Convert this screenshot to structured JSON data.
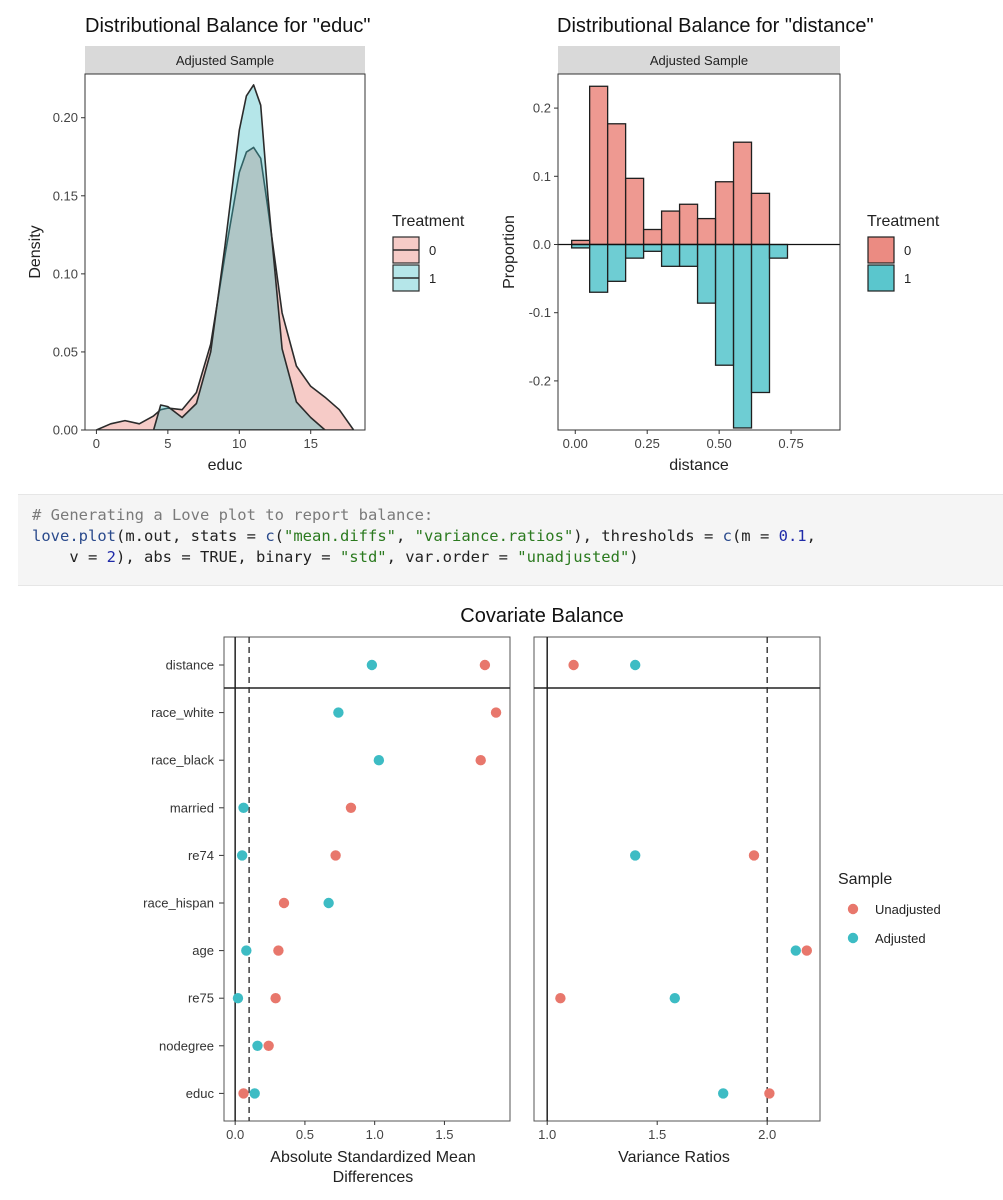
{
  "colors": {
    "control": "#E8776C",
    "treated": "#3DBCC4",
    "strip_bg": "#D9D9D9"
  },
  "chart_data": [
    {
      "type": "area",
      "title": "Distributional Balance for \"educ\"",
      "strip": "Adjusted Sample",
      "xlabel": "educ",
      "ylabel": "Density",
      "xlim": [
        -0.8,
        18.8
      ],
      "ylim": [
        0,
        0.228
      ],
      "xticks": [
        "0",
        "5",
        "10",
        "15"
      ],
      "xtick_values": [
        0,
        5,
        10,
        15
      ],
      "yticks": [
        "0.00",
        "0.05",
        "0.10",
        "0.15",
        "0.20"
      ],
      "ytick_values": [
        0,
        0.05,
        0.1,
        0.15,
        0.2
      ],
      "legend": {
        "title": "Treatment",
        "position": "right",
        "entries": [
          "0",
          "1"
        ]
      },
      "series": [
        {
          "name": "0",
          "x": [
            0,
            1,
            2,
            3,
            4,
            4.5,
            5,
            6,
            7,
            8,
            9,
            10,
            10.5,
            11,
            11.5,
            12,
            13,
            14,
            15,
            16,
            17,
            18
          ],
          "y": [
            0,
            0.004,
            0.006,
            0.004,
            0.009,
            0.013,
            0.014,
            0.013,
            0.024,
            0.055,
            0.112,
            0.165,
            0.178,
            0.181,
            0.174,
            0.142,
            0.075,
            0.041,
            0.028,
            0.021,
            0.013,
            0
          ]
        },
        {
          "name": "1",
          "x": [
            4,
            4.5,
            5,
            6,
            7,
            8,
            9,
            10,
            10.5,
            11,
            11.5,
            12,
            13,
            14,
            15,
            16
          ],
          "y": [
            0,
            0.016,
            0.015,
            0.008,
            0.017,
            0.05,
            0.118,
            0.192,
            0.214,
            0.221,
            0.208,
            0.15,
            0.052,
            0.018,
            0.008,
            0
          ]
        }
      ]
    },
    {
      "type": "bar",
      "title": "Distributional Balance for \"distance\"",
      "strip": "Adjusted Sample",
      "xlabel": "distance",
      "ylabel": "Proportion",
      "xlim": [
        -0.06,
        0.92
      ],
      "ylim": [
        -0.272,
        0.25
      ],
      "xticks": [
        "0.00",
        "0.25",
        "0.50",
        "0.75"
      ],
      "xtick_values": [
        0,
        0.25,
        0.5,
        0.75
      ],
      "yticks": [
        "-0.2",
        "-0.1",
        "0.0",
        "0.1",
        "0.2"
      ],
      "ytick_values": [
        -0.2,
        -0.1,
        0,
        0.1,
        0.2
      ],
      "bin_width": 0.0625,
      "legend": {
        "title": "Treatment",
        "position": "right",
        "entries": [
          "0",
          "1"
        ]
      },
      "bin_starts": [
        -0.0125,
        0.05,
        0.1125,
        0.175,
        0.2375,
        0.3,
        0.3625,
        0.425,
        0.4875,
        0.55,
        0.6125,
        0.675,
        0.7375,
        0.8
      ],
      "series": [
        {
          "name": "0",
          "values": [
            0.006,
            0.232,
            0.177,
            0.097,
            0.022,
            0.049,
            0.059,
            0.038,
            0.092,
            0.15,
            0.075,
            0,
            0,
            0
          ]
        },
        {
          "name": "1",
          "values": [
            -0.005,
            -0.07,
            -0.054,
            -0.02,
            -0.01,
            -0.032,
            -0.032,
            -0.086,
            -0.177,
            -0.269,
            -0.217,
            -0.02,
            0,
            0
          ]
        }
      ]
    },
    {
      "type": "scatter",
      "title": "Covariate Balance",
      "legend": {
        "title": "Sample",
        "position": "right",
        "entries": [
          "Unadjusted",
          "Adjusted"
        ]
      },
      "covariates": [
        "distance",
        "race_white",
        "race_black",
        "married",
        "re74",
        "race_hispan",
        "age",
        "re75",
        "nodegree",
        "educ"
      ],
      "panels": [
        {
          "xlabel": "Absolute Standardized Mean Differences",
          "xlim": [
            -0.08,
            1.97
          ],
          "xticks": [
            "0.0",
            "0.5",
            "1.0",
            "1.5"
          ],
          "xtick_values": [
            0,
            0.5,
            1.0,
            1.5
          ],
          "zero_line": 0,
          "threshold": 0.1,
          "series": [
            {
              "name": "Unadjusted",
              "values": [
                1.79,
                1.87,
                1.76,
                0.83,
                0.72,
                0.35,
                0.31,
                0.29,
                0.24,
                0.06
              ]
            },
            {
              "name": "Adjusted",
              "values": [
                0.98,
                0.74,
                1.03,
                0.06,
                0.05,
                0.67,
                0.08,
                0.02,
                0.16,
                0.14
              ]
            }
          ]
        },
        {
          "xlabel": "Variance Ratios",
          "xlim": [
            0.94,
            2.24
          ],
          "xticks": [
            "1.0",
            "1.5",
            "2.0"
          ],
          "xtick_values": [
            1.0,
            1.5,
            2.0
          ],
          "zero_line": 1.0,
          "threshold": 2.0,
          "series": [
            {
              "name": "Unadjusted",
              "values": [
                1.12,
                null,
                null,
                null,
                1.94,
                null,
                2.18,
                1.06,
                null,
                2.01
              ]
            },
            {
              "name": "Adjusted",
              "values": [
                1.4,
                null,
                null,
                null,
                1.4,
                null,
                2.13,
                1.58,
                null,
                1.8
              ]
            }
          ]
        }
      ]
    }
  ],
  "code": {
    "comment": "# Generating a Love plot to report balance:",
    "l1_fn": "love.plot",
    "l1_a": "(m.out, stats = ",
    "l1_c1": "c",
    "l1_b": "(",
    "l1_s1": "\"mean.diffs\"",
    "l1_comma": ", ",
    "l1_s2": "\"variance.ratios\"",
    "l1_d": "), thresholds = ",
    "l1_c2": "c",
    "l1_e": "(m = ",
    "l1_n1": "0.1",
    "l1_f": ",",
    "l2_a": "    v = ",
    "l2_n2": "2",
    "l2_b": "), abs = TRUE, binary = ",
    "l2_s3": "\"std\"",
    "l2_c": ", var.order = ",
    "l2_s4": "\"unadjusted\"",
    "l2_d": ")"
  }
}
